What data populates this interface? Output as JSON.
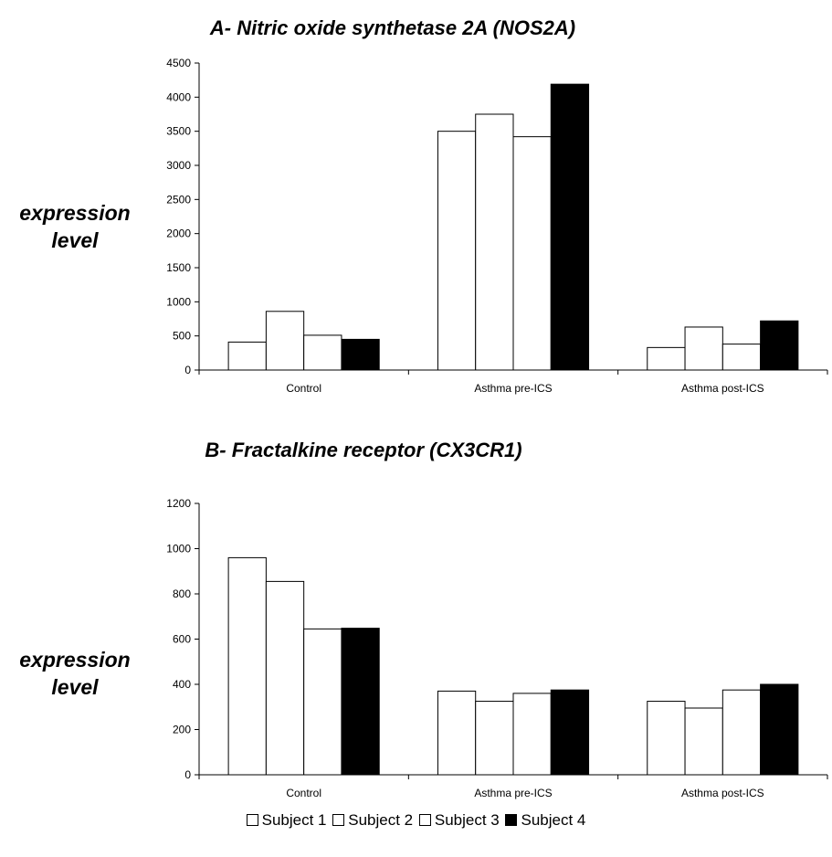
{
  "colors": {
    "open": "#ffffff",
    "filled": "#000000",
    "axis": "#000000"
  },
  "legend": [
    {
      "label": "Subject 1",
      "fill": "#ffffff"
    },
    {
      "label": "Subject 2",
      "fill": "#ffffff"
    },
    {
      "label": "Subject 3",
      "fill": "#ffffff"
    },
    {
      "label": "Subject 4",
      "fill": "#000000"
    }
  ],
  "chart_data": [
    {
      "type": "bar",
      "title": "A- Nitric oxide synthetase 2A (NOS2A)",
      "ylabel": "expression level",
      "ylabel_lines": [
        "expression",
        "level"
      ],
      "xlabel": "",
      "categories": [
        "Control",
        "Asthma pre-ICS",
        "Asthma post-ICS"
      ],
      "ylim": [
        0,
        4500
      ],
      "yticks": [
        "0",
        "500",
        "1000",
        "1500",
        "2000",
        "2500",
        "3000",
        "3500",
        "4000",
        "4500"
      ],
      "grid": false,
      "legend_position": "bottom",
      "series": [
        {
          "name": "Subject 1",
          "values": [
            410,
            3500,
            330
          ]
        },
        {
          "name": "Subject 2",
          "values": [
            860,
            3750,
            630
          ]
        },
        {
          "name": "Subject 3",
          "values": [
            510,
            3420,
            380
          ]
        },
        {
          "name": "Subject 4",
          "values": [
            450,
            4190,
            720
          ]
        }
      ]
    },
    {
      "type": "bar",
      "title": "B- Fractalkine receptor (CX3CR1)",
      "ylabel": "expression level",
      "ylabel_lines": [
        "expression",
        "level"
      ],
      "xlabel": "",
      "categories": [
        "Control",
        "Asthma pre-ICS",
        "Asthma post-ICS"
      ],
      "ylim": [
        0,
        1200
      ],
      "yticks": [
        "0",
        "200",
        "400",
        "600",
        "800",
        "1000",
        "1200"
      ],
      "grid": false,
      "legend_position": "bottom",
      "series": [
        {
          "name": "Subject 1",
          "values": [
            960,
            370,
            325
          ]
        },
        {
          "name": "Subject 2",
          "values": [
            855,
            325,
            295
          ]
        },
        {
          "name": "Subject 3",
          "values": [
            645,
            360,
            375
          ]
        },
        {
          "name": "Subject 4",
          "values": [
            648,
            375,
            400
          ]
        }
      ]
    }
  ]
}
